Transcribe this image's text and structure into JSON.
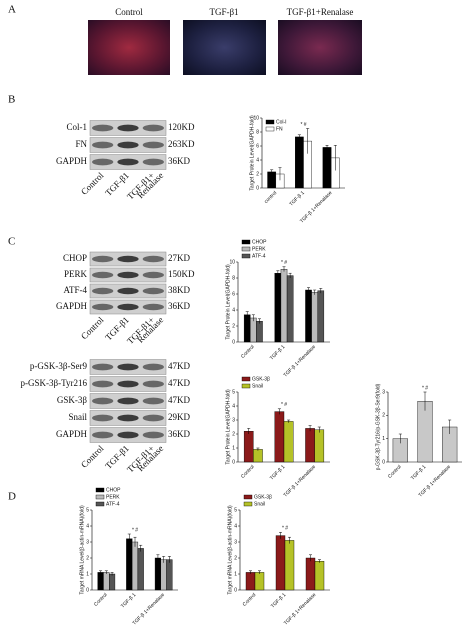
{
  "panel_labels": [
    "A",
    "B",
    "C",
    "D"
  ],
  "micrographs": [
    "Control",
    "TGF-β1",
    "TGF-β1+Renalase"
  ],
  "blots": [
    {
      "rows": [
        {
          "protein": "Col-1",
          "size": "120KD"
        },
        {
          "protein": "FN",
          "size": "263KD"
        },
        {
          "protein": "GAPDH",
          "size": "36KD"
        }
      ],
      "lanes": [
        "Control",
        "TGF-β1",
        [
          "TGF-β1+",
          "Renalase"
        ]
      ]
    },
    {
      "rows": [
        {
          "protein": "CHOP",
          "size": "27KD"
        },
        {
          "protein": "PERK",
          "size": "150KD"
        },
        {
          "protein": "ATF-4",
          "size": "38KD"
        },
        {
          "protein": "GAPDH",
          "size": "36KD"
        }
      ],
      "lanes": [
        "Control",
        "TGF-β1",
        [
          "TGF-β1+",
          "Renalase"
        ]
      ]
    },
    {
      "rows": [
        {
          "protein": "p-GSK-3β-Ser9",
          "size": "47KD"
        },
        {
          "protein": "p-GSK-3β-Tyr216",
          "size": "47KD"
        },
        {
          "protein": "GSK-3β",
          "size": "47KD"
        },
        {
          "protein": "Snail",
          "size": "29KD"
        },
        {
          "protein": "GAPDH",
          "size": "36KD"
        }
      ],
      "lanes": [
        "Control",
        "TGF-β1",
        [
          "TGF-β1+",
          "Renalase"
        ]
      ]
    }
  ],
  "chart_data": [
    {
      "type": "bar",
      "ylabel": "Target Protein Level(GAPDH-fold)",
      "categories": [
        "control",
        "TGF-β 1",
        "TGF-β 1+Renalase"
      ],
      "series": [
        {
          "name": "Col-I",
          "color": "#000000",
          "values": [
            2.3,
            7.3,
            5.8
          ],
          "errors": [
            0.3,
            0.3,
            0.3
          ]
        },
        {
          "name": "FN",
          "color": "#ffffff",
          "values": [
            2.0,
            6.7,
            4.3
          ],
          "errors": [
            0.9,
            1.8,
            1.8
          ]
        }
      ],
      "ylim": [
        0,
        10
      ],
      "yticks": [
        0,
        2,
        4,
        6,
        8,
        10
      ],
      "annotation": "* #",
      "legend": "inside"
    },
    {
      "type": "bar",
      "ylabel": "Target Protein Level(GAPDH-fold)",
      "categories": [
        "Control",
        "TGF-β 1",
        "TGF-β 1+Renalase"
      ],
      "series": [
        {
          "name": "CHOP",
          "color": "#000000",
          "values": [
            3.4,
            8.6,
            6.5
          ],
          "errors": [
            0.4,
            0.3,
            0.3
          ]
        },
        {
          "name": "PERK",
          "color": "#bbbbbb",
          "values": [
            3.0,
            9.1,
            6.2
          ],
          "errors": [
            0.4,
            0.3,
            0.3
          ]
        },
        {
          "name": "ATF-4",
          "color": "#555555",
          "values": [
            2.6,
            8.3,
            6.4
          ],
          "errors": [
            0.3,
            0.3,
            0.3
          ]
        }
      ],
      "ylim": [
        0,
        10
      ],
      "yticks": [
        0,
        2,
        4,
        6,
        8,
        10
      ],
      "annotation": "* #",
      "legend": "above"
    },
    {
      "type": "bar",
      "ylabel": "Target Protein Level(GAPDH-fold)",
      "categories": [
        "Control",
        "TGF-β 1",
        "TGF-β 1+Renalase"
      ],
      "series": [
        {
          "name": "GSK-3β",
          "color": "#8b1a1a",
          "values": [
            2.2,
            3.6,
            2.4
          ],
          "errors": [
            0.2,
            0.2,
            0.2
          ]
        },
        {
          "name": "Snail",
          "color": "#b5c227",
          "values": [
            0.9,
            2.9,
            2.3
          ],
          "errors": [
            0.1,
            0.1,
            0.2
          ]
        }
      ],
      "ylim": [
        0,
        5
      ],
      "yticks": [
        0,
        1,
        2,
        3,
        4,
        5
      ],
      "annotation": "* #",
      "legend": "above"
    },
    {
      "type": "bar",
      "ylabel": "p-GSK-3β-Tyr216/p-GSK-3β-Ser9(fold)",
      "categories": [
        "Control",
        "TGF-β 1",
        "TGF-β 1+Renalase"
      ],
      "series": [
        {
          "color": "#c8c8c8",
          "values": [
            1.0,
            2.6,
            1.5
          ],
          "errors": [
            0.2,
            0.4,
            0.3
          ]
        }
      ],
      "ylim": [
        0,
        3
      ],
      "yticks": [
        0,
        1,
        2,
        3
      ],
      "annotation": "* #"
    },
    {
      "type": "bar",
      "ylabel": "Target mRNA Level(β-actin-mRNA)(fold)",
      "categories": [
        "Control",
        "TGF-β 1",
        "TGF-β 1+Renalase"
      ],
      "series": [
        {
          "name": "CHOP",
          "color": "#000000",
          "values": [
            1.1,
            3.2,
            2.0
          ],
          "errors": [
            0.1,
            0.3,
            0.2
          ]
        },
        {
          "name": "PERK",
          "color": "#bbbbbb",
          "values": [
            1.1,
            3.0,
            1.9
          ],
          "errors": [
            0.1,
            0.3,
            0.2
          ]
        },
        {
          "name": "ATF-4",
          "color": "#555555",
          "values": [
            1.0,
            2.6,
            1.9
          ],
          "errors": [
            0.1,
            0.2,
            0.2
          ]
        }
      ],
      "ylim": [
        0,
        5
      ],
      "yticks": [
        0,
        1,
        2,
        3,
        4,
        5
      ],
      "annotation": "* #",
      "legend": "above"
    },
    {
      "type": "bar",
      "ylabel": "Target mRNA Level(β-actin-mRNA)(fold)",
      "categories": [
        "Control",
        "TGF-β 1",
        "TGF-β 1+Renalase"
      ],
      "series": [
        {
          "name": "GSK-3β",
          "color": "#8b1a1a",
          "values": [
            1.1,
            3.4,
            2.0
          ],
          "errors": [
            0.1,
            0.2,
            0.2
          ]
        },
        {
          "name": "Snail",
          "color": "#b5c227",
          "values": [
            1.1,
            3.1,
            1.8
          ],
          "errors": [
            0.1,
            0.2,
            0.1
          ]
        }
      ],
      "ylim": [
        0,
        5
      ],
      "yticks": [
        0,
        1,
        2,
        3,
        4,
        5
      ],
      "annotation": "* #",
      "legend": "above"
    }
  ]
}
